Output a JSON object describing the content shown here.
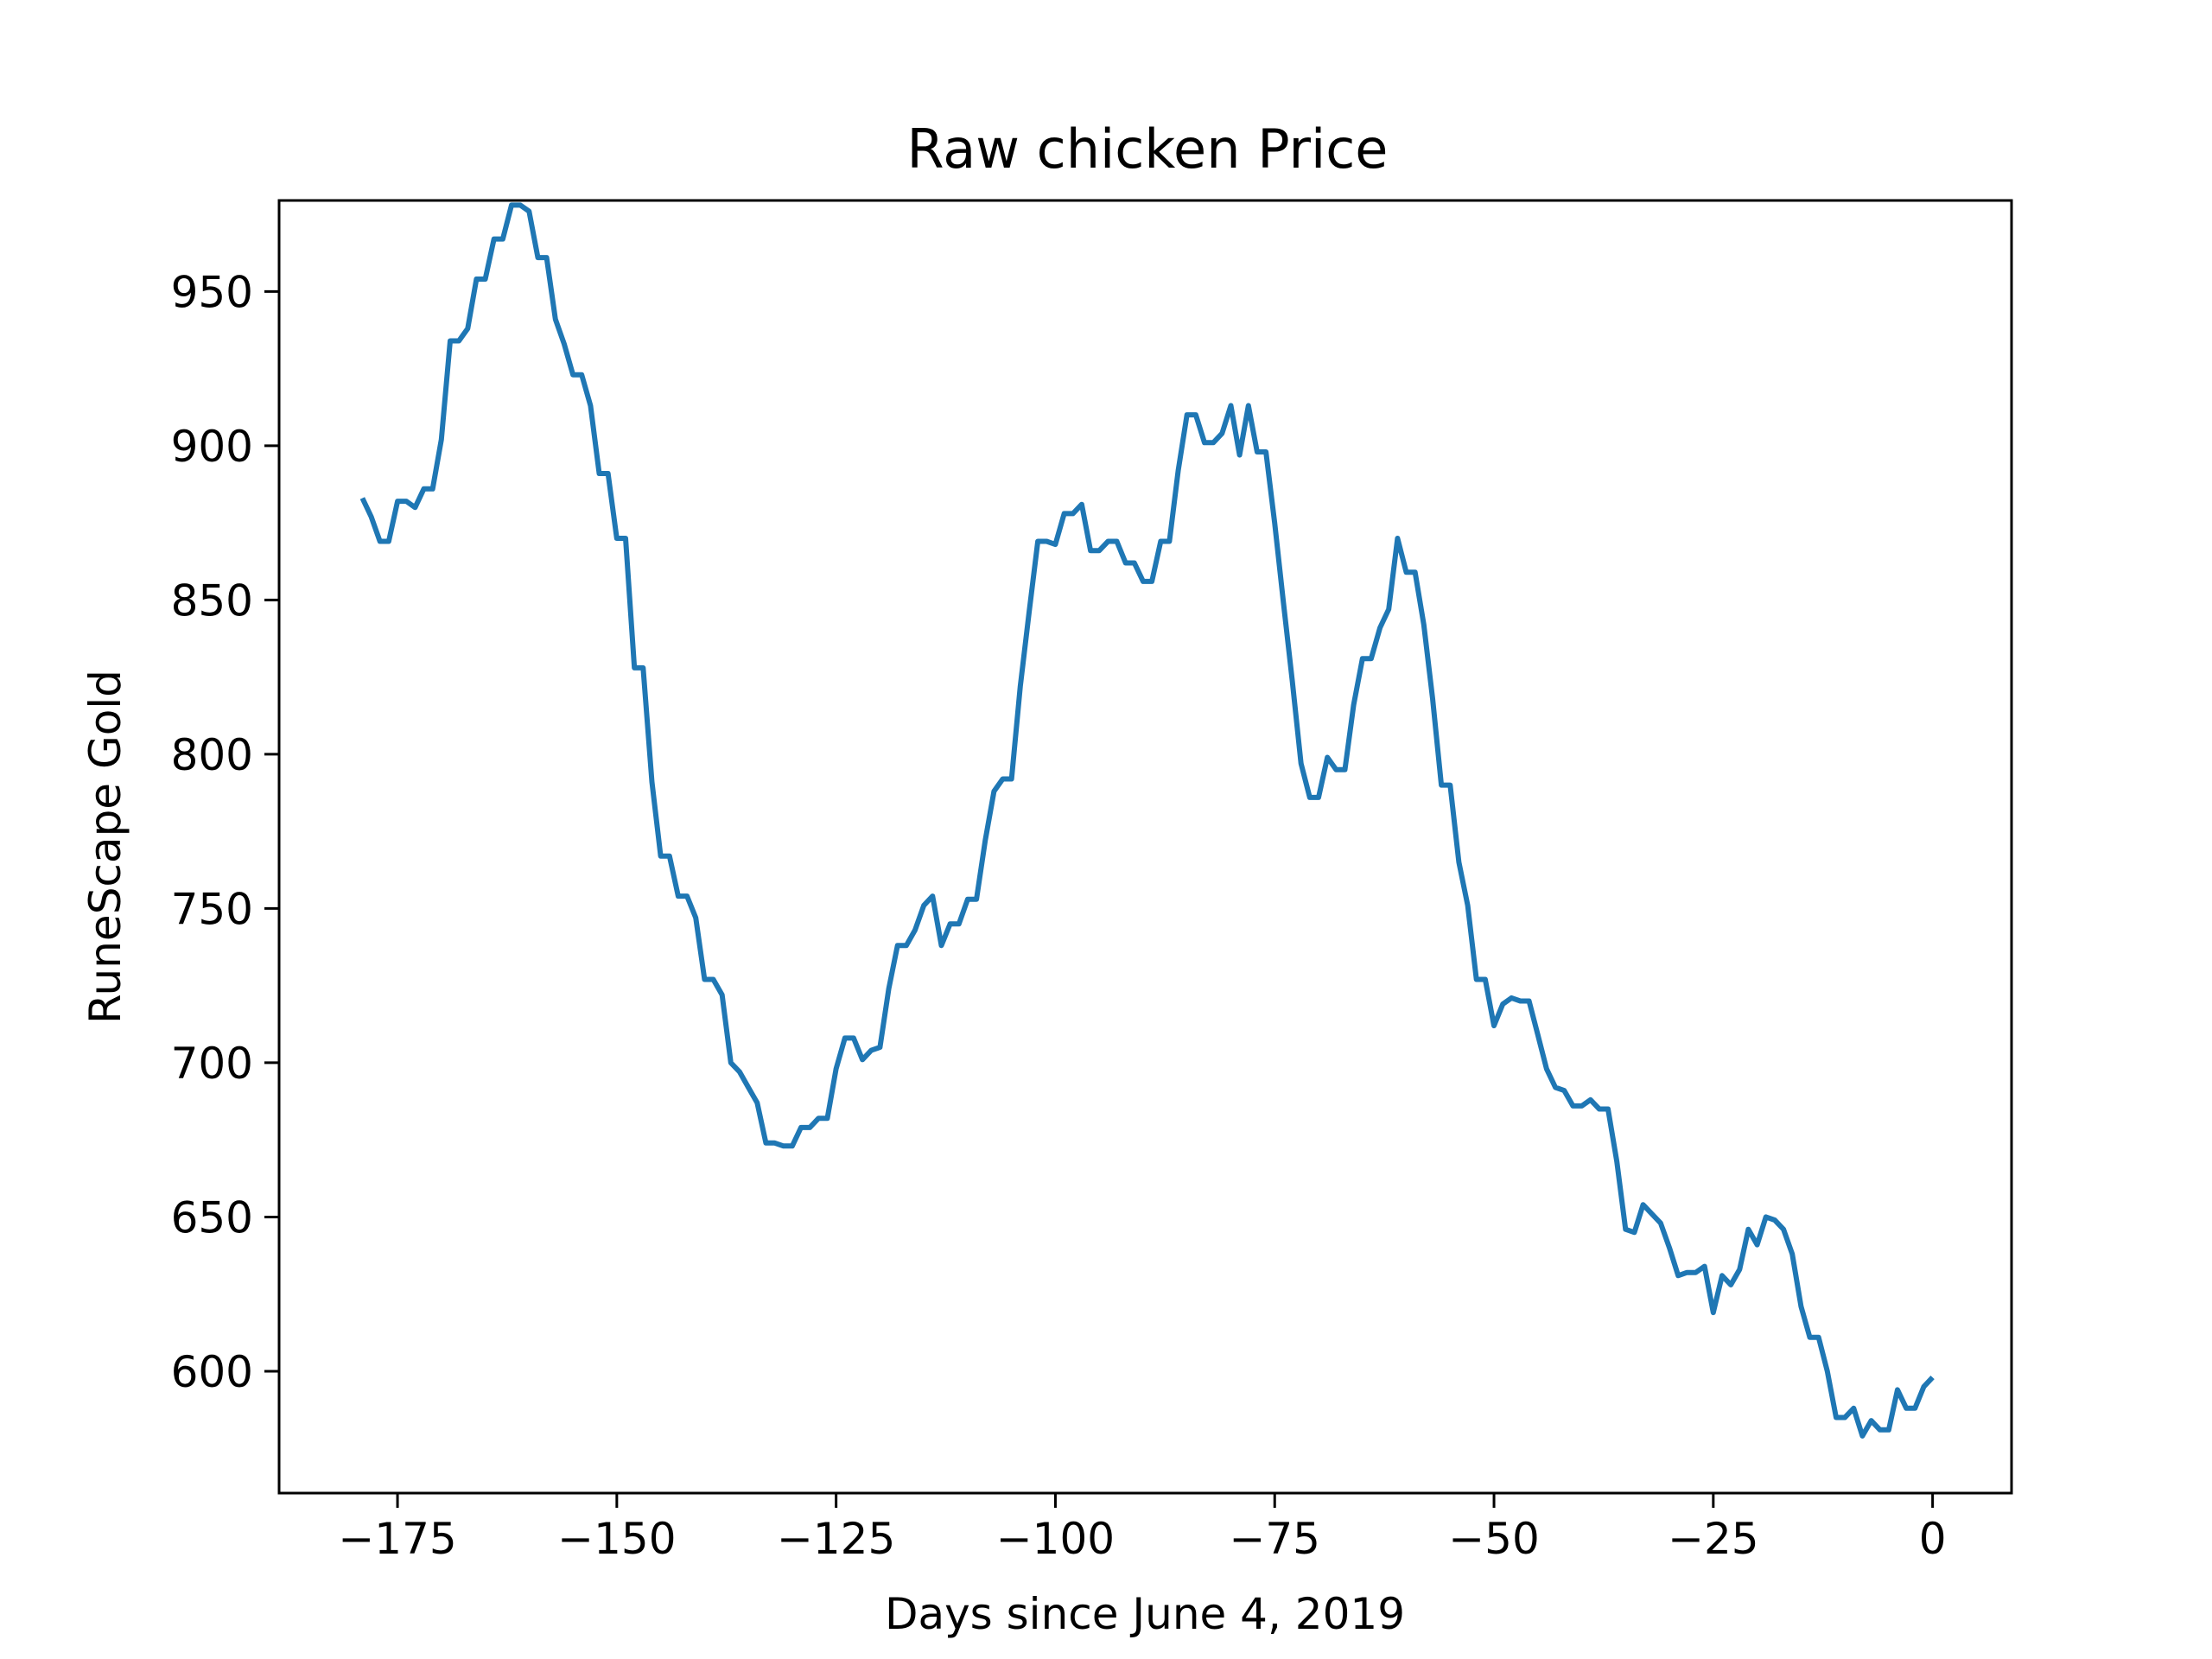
{
  "chart_data": {
    "type": "line",
    "title": "Raw chicken Price",
    "xlabel": "Days since June 4, 2019",
    "ylabel": "RuneScape Gold",
    "xlim": [
      -188.5,
      9
    ],
    "ylim": [
      560.5,
      979.5
    ],
    "xticks": [
      -175,
      -150,
      -125,
      -100,
      -75,
      -50,
      -25,
      0
    ],
    "xtick_labels": [
      "−175",
      "−150",
      "−125",
      "−100",
      "−75",
      "−50",
      "−25",
      "0"
    ],
    "yticks": [
      600,
      650,
      700,
      750,
      800,
      850,
      900,
      950
    ],
    "ytick_labels": [
      "600",
      "650",
      "700",
      "750",
      "800",
      "850",
      "900",
      "950"
    ],
    "grid": false,
    "colors": {
      "series": "#1f77b4"
    },
    "series": [
      {
        "x": [
          -179,
          -178,
          -177,
          -176,
          -175,
          -174,
          -173,
          -172,
          -171,
          -170,
          -169,
          -168,
          -167,
          -166,
          -165,
          -164,
          -163,
          -162,
          -161,
          -160,
          -159,
          -158,
          -157,
          -156,
          -155,
          -154,
          -153,
          -152,
          -151,
          -150,
          -149,
          -148,
          -147,
          -146,
          -145,
          -144,
          -143,
          -142,
          -141,
          -140,
          -139,
          -138,
          -137,
          -136,
          -135,
          -134,
          -133,
          -132,
          -131,
          -130,
          -129,
          -128,
          -127,
          -126,
          -125,
          -124,
          -123,
          -122,
          -121,
          -120,
          -119,
          -118,
          -117,
          -116,
          -115,
          -114,
          -113,
          -112,
          -111,
          -110,
          -109,
          -108,
          -107,
          -106,
          -105,
          -104,
          -103,
          -102,
          -101,
          -100,
          -99,
          -98,
          -97,
          -96,
          -95,
          -94,
          -93,
          -92,
          -91,
          -90,
          -89,
          -88,
          -87,
          -86,
          -85,
          -84,
          -83,
          -82,
          -81,
          -80,
          -79,
          -78,
          -77,
          -76,
          -75,
          -74,
          -73,
          -72,
          -71,
          -70,
          -69,
          -68,
          -67,
          -66,
          -65,
          -64,
          -63,
          -62,
          -61,
          -60,
          -59,
          -58,
          -57,
          -56,
          -55,
          -54,
          -53,
          -52,
          -51,
          -50,
          -49,
          -48,
          -47,
          -46,
          -45,
          -44,
          -43,
          -42,
          -41,
          -40,
          -39,
          -38,
          -37,
          -36,
          -35,
          -34,
          -33,
          -32,
          -31,
          -30,
          -29,
          -28,
          -27,
          -26,
          -25,
          -24,
          -23,
          -22,
          -21,
          -20,
          -19,
          -18,
          -17,
          -16,
          -15,
          -14,
          -13,
          -12,
          -11,
          -10,
          -9,
          -8,
          -7,
          -6,
          -5,
          -4,
          -3,
          -2,
          -1,
          0
        ],
        "y": [
          883,
          877,
          869,
          869,
          882,
          882,
          880,
          886,
          886,
          902,
          934,
          934,
          938,
          954,
          954,
          967,
          967,
          978,
          978,
          976,
          961,
          961,
          941,
          933,
          923,
          923,
          913,
          891,
          891,
          870,
          870,
          828,
          828,
          791,
          767,
          767,
          754,
          754,
          747,
          727,
          727,
          722,
          700,
          697,
          692,
          687,
          674,
          674,
          673,
          673,
          679,
          679,
          682,
          682,
          698,
          708,
          708,
          701,
          704,
          705,
          724,
          738,
          738,
          743,
          751,
          754,
          738,
          745,
          745,
          753,
          753,
          772,
          788,
          792,
          792,
          822,
          846,
          869,
          869,
          868,
          878,
          878,
          881,
          866,
          866,
          869,
          869,
          862,
          862,
          856,
          856,
          869,
          869,
          892,
          910,
          910,
          901,
          901,
          904,
          913,
          897,
          913,
          898,
          898,
          875,
          849,
          824,
          797,
          786,
          786,
          799,
          795,
          795,
          816,
          831,
          831,
          841,
          847,
          870,
          859,
          859,
          842,
          818,
          790,
          790,
          765,
          751,
          727,
          727,
          712,
          719,
          721,
          720,
          720,
          709,
          698,
          692,
          691,
          686,
          686,
          688,
          685,
          685,
          668,
          646,
          645,
          654,
          651,
          648,
          640,
          631,
          632,
          632,
          634,
          619,
          631,
          628,
          633,
          646,
          641,
          650,
          649,
          646,
          638,
          621,
          611,
          611,
          600,
          585,
          585,
          588,
          579,
          584,
          581,
          581,
          594,
          588,
          588,
          595,
          598
        ]
      }
    ]
  }
}
